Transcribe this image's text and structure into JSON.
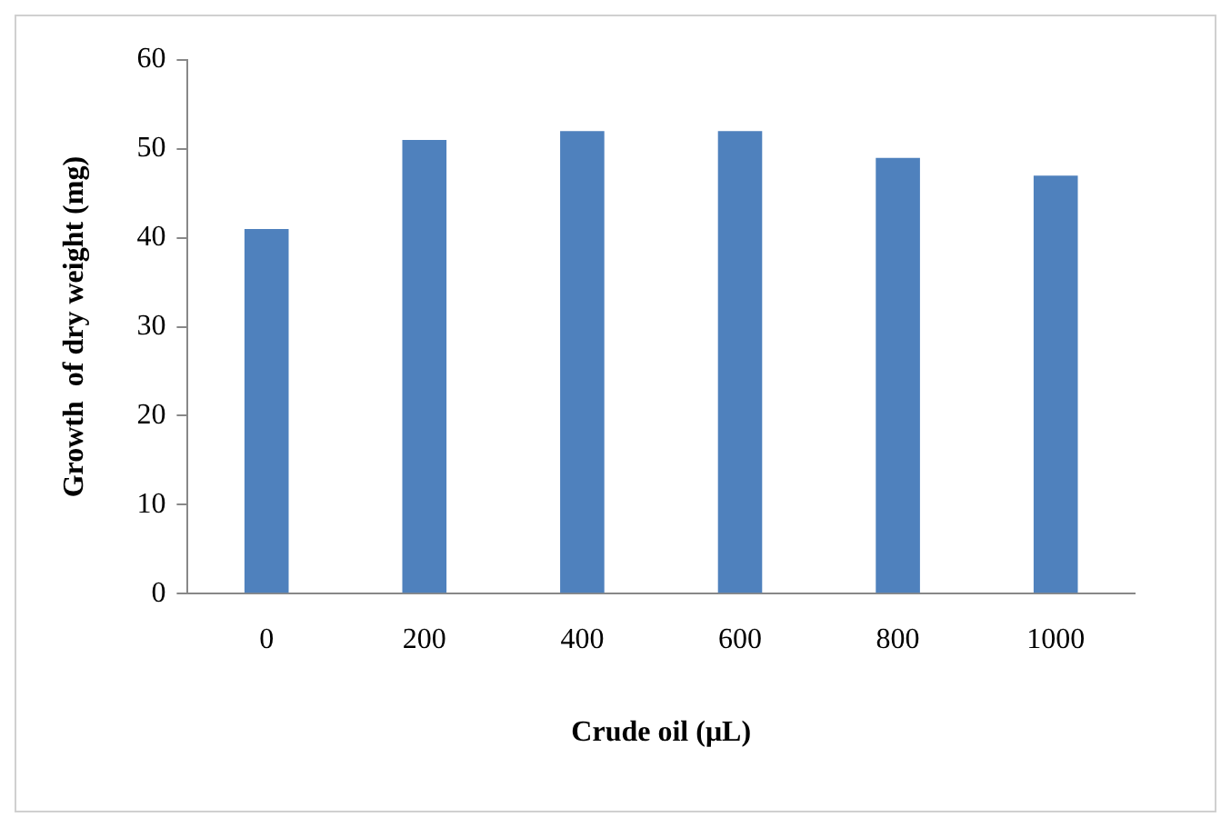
{
  "chart_data": {
    "type": "bar",
    "xlabel": "Crude oil (μL)",
    "ylabel": "Growth  of dry weight (mg)",
    "categories": [
      "0",
      "200",
      "400",
      "600",
      "800",
      "1000"
    ],
    "values": [
      41,
      51,
      52,
      52,
      49,
      47
    ],
    "color": "#4f81bd",
    "ylim": [
      0,
      60
    ],
    "yticks": [
      0,
      10,
      20,
      30,
      40,
      50,
      60
    ],
    "grid": false,
    "legend": false
  }
}
